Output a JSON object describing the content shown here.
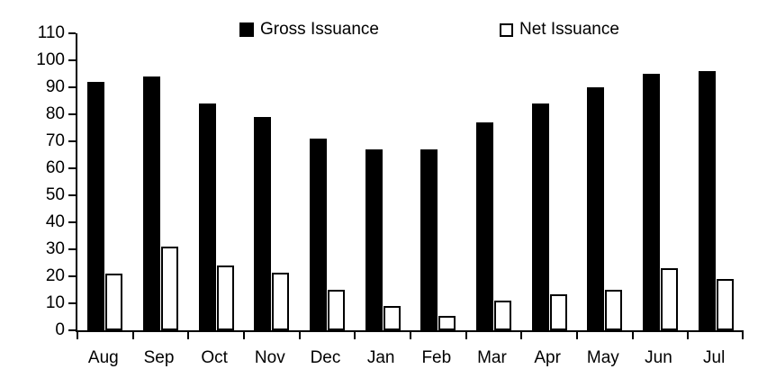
{
  "legend": {
    "gross_label": "Gross Issuance",
    "net_label": "Net Issuance"
  },
  "colors": {
    "gross_fill": "#000000",
    "net_fill": "#ffffff",
    "net_stroke": "#000000",
    "axis": "#000000",
    "background": "#ffffff"
  },
  "chart_data": {
    "type": "bar",
    "title": "",
    "xlabel": "",
    "ylabel": "",
    "categories": [
      "Aug",
      "Sep",
      "Oct",
      "Nov",
      "Dec",
      "Jan",
      "Feb",
      "Mar",
      "Apr",
      "May",
      "Jun",
      "Jul"
    ],
    "series": [
      {
        "name": "Gross Issuance",
        "style": "filled-black",
        "values": [
          92,
          94,
          84,
          79,
          71,
          67,
          67,
          77,
          84,
          90,
          95,
          96
        ]
      },
      {
        "name": "Net Issuance",
        "style": "white-outlined",
        "values": [
          21,
          31,
          24,
          21.5,
          15,
          9,
          5.5,
          11,
          13.5,
          15,
          23,
          19
        ]
      }
    ],
    "ylim": [
      0,
      110
    ],
    "ytick_step": 10,
    "yticks": [
      0,
      10,
      20,
      30,
      40,
      50,
      60,
      70,
      80,
      90,
      100,
      110
    ],
    "grid": false,
    "legend_position": "top-inside"
  }
}
